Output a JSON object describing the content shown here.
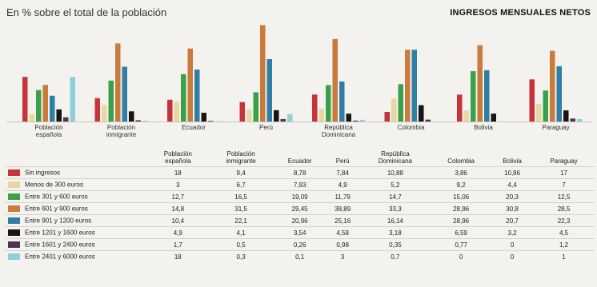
{
  "subtitle": "En % sobre el total de la población",
  "title": "INGRESOS MENSUALES NETOS",
  "chart_data": {
    "type": "bar",
    "categories": [
      "Población española",
      "Población inmigrante",
      "Ecuador",
      "Perú",
      "República Dominicana",
      "Colombia",
      "Bolivia",
      "Paraguay"
    ],
    "ylim": [
      0,
      40
    ],
    "series": [
      {
        "name": "Sin ingresos",
        "color": "#c8333b",
        "values": [
          18,
          9.4,
          8.78,
          7.84,
          10.88,
          3.86,
          10.86,
          17
        ]
      },
      {
        "name": "Menos de 300 euros",
        "color": "#e8d7a3",
        "values": [
          3,
          6.7,
          7.93,
          4.9,
          5.2,
          9.2,
          4.4,
          7
        ]
      },
      {
        "name": "Entre 301 y 600 euros",
        "color": "#3aa14a",
        "values": [
          12.7,
          16.5,
          19.09,
          11.79,
          14.7,
          15.06,
          20.3,
          12.5
        ]
      },
      {
        "name": "Entre 601 y 900 euros",
        "color": "#c97b3c",
        "values": [
          14.8,
          31.5,
          29.45,
          38.89,
          33.3,
          28.96,
          30.8,
          28.5
        ]
      },
      {
        "name": "Entre 901 y 1200 euros",
        "color": "#2f7ea3",
        "values": [
          10.4,
          22.1,
          20.96,
          25.16,
          16.14,
          28.96,
          20.7,
          22.3
        ]
      },
      {
        "name": "Entre 1201 y 1600 euros",
        "color": "#1a1416",
        "values": [
          4.9,
          4.1,
          3.54,
          4.58,
          3.18,
          6.59,
          3.2,
          4.5
        ]
      },
      {
        "name": "Entre 1601 y 2400 euros",
        "color": "#4a3557",
        "values": [
          1.7,
          0.5,
          0.26,
          0.98,
          0.35,
          0.77,
          0,
          1.2
        ]
      },
      {
        "name": "Entre 2401 y 6000 euros",
        "color": "#8fcfd8",
        "values": [
          18,
          0.3,
          0.1,
          3,
          0.7,
          0,
          0,
          1
        ]
      }
    ]
  },
  "table": {
    "headers": [
      "Población\nespañola",
      "Población\ninmigrante",
      "Ecuador",
      "Perú",
      "República\nDominicana",
      "Colombia",
      "Bolivia",
      "Paraguay"
    ],
    "rows": [
      {
        "label": "Sin ingresos",
        "values": [
          "18",
          "9,4",
          "8,78",
          "7,84",
          "10,88",
          "3,86",
          "10,86",
          "17"
        ]
      },
      {
        "label": "Menos de 300 euros",
        "values": [
          "3",
          "6,7",
          "7,93",
          "4,9",
          "5,2",
          "9,2",
          "4,4",
          "7"
        ]
      },
      {
        "label": "Entre 301 y 600 euros",
        "values": [
          "12,7",
          "16,5",
          "19,09",
          "11,79",
          "14,7",
          "15,06",
          "20,3",
          "12,5"
        ]
      },
      {
        "label": "Entre 601 y 900 euros",
        "values": [
          "14,8",
          "31,5",
          "29,45",
          "38,89",
          "33,3",
          "28,96",
          "30,8",
          "28,5"
        ]
      },
      {
        "label": "Entre 901 y 1200 euros",
        "values": [
          "10,4",
          "22,1",
          "20,96",
          "25,16",
          "16,14",
          "28,96",
          "20,7",
          "22,3"
        ]
      },
      {
        "label": "Entre 1201 y 1600 euros",
        "values": [
          "4,9",
          "4,1",
          "3,54",
          "4,58",
          "3,18",
          "6,59",
          "3,2",
          "4,5"
        ]
      },
      {
        "label": "Entre 1601 y 2400 euros",
        "values": [
          "1,7",
          "0,5",
          "0,26",
          "0,98",
          "0,35",
          "0,77",
          "0",
          "1,2"
        ]
      },
      {
        "label": "Entre 2401 y 6000 euros",
        "values": [
          "18",
          "0,3",
          "0,1",
          "3",
          "0,7",
          "0",
          "0",
          "1"
        ]
      }
    ]
  }
}
